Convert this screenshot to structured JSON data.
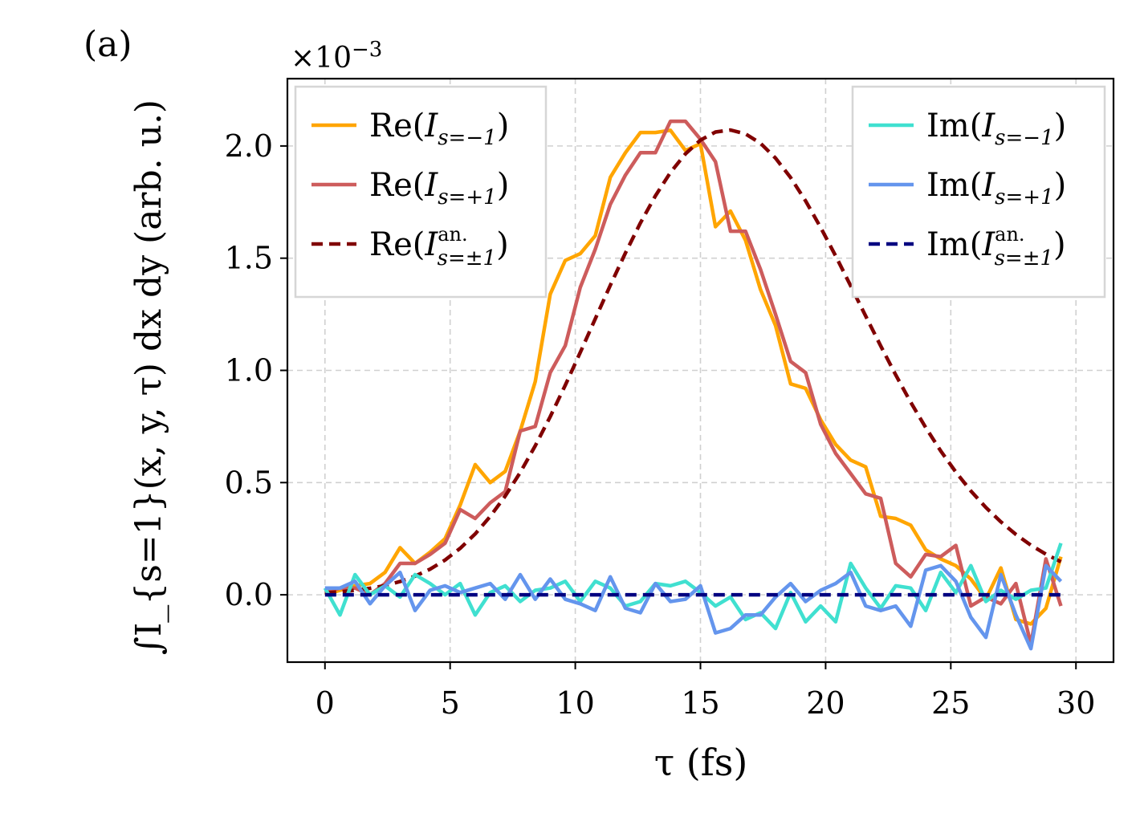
{
  "panel_label": "(a)",
  "scale_label": {
    "prefix": "×10",
    "exponent": "−3"
  },
  "x_axis": {
    "label": "τ (fs)",
    "ticks": [
      "0",
      "5",
      "10",
      "15",
      "20",
      "25",
      "30"
    ]
  },
  "y_axis": {
    "label": "∫I_{s=1}(x, y, τ) dx dy (arb. u.)",
    "ticks": [
      "0.0",
      "0.5",
      "1.0",
      "1.5",
      "2.0"
    ]
  },
  "chart_data": {
    "type": "line",
    "title": "",
    "xlabel": "τ (fs)",
    "ylabel": "∫I_{s=1}(x,y,τ) dx dy (arb. u.)",
    "scale": "×10^-3",
    "xlim": [
      -1.5,
      31.5
    ],
    "ylim": [
      -0.3,
      2.3
    ],
    "xticks": [
      0,
      5,
      10,
      15,
      20,
      25,
      30
    ],
    "yticks": [
      0.0,
      0.5,
      1.0,
      1.5,
      2.0
    ],
    "grid": true,
    "x": [
      0.0,
      0.6,
      1.2,
      1.8,
      2.4,
      3.0,
      3.6,
      4.2,
      4.8,
      5.4,
      6.0,
      6.6,
      7.2,
      7.8,
      8.4,
      9.0,
      9.6,
      10.2,
      10.8,
      11.4,
      12.0,
      12.6,
      13.2,
      13.8,
      14.4,
      15.0,
      15.6,
      16.2,
      16.8,
      17.4,
      18.0,
      18.6,
      19.2,
      19.8,
      20.4,
      21.0,
      21.6,
      22.2,
      22.8,
      23.4,
      24.0,
      24.6,
      25.2,
      25.8,
      26.4,
      27.0,
      27.6,
      28.2,
      28.8,
      29.4
    ],
    "series": [
      {
        "name": "Re(I_{s=−1})",
        "color": "#FFA500",
        "dash": "solid",
        "values": [
          0.0,
          0.02,
          0.04,
          0.05,
          0.1,
          0.21,
          0.14,
          0.19,
          0.25,
          0.4,
          0.58,
          0.5,
          0.55,
          0.73,
          0.95,
          1.34,
          1.49,
          1.52,
          1.6,
          1.86,
          1.97,
          2.06,
          2.06,
          2.07,
          1.98,
          2.01,
          1.64,
          1.71,
          1.58,
          1.36,
          1.2,
          0.94,
          0.92,
          0.78,
          0.67,
          0.6,
          0.57,
          0.35,
          0.34,
          0.31,
          0.2,
          0.16,
          0.13,
          0.07,
          -0.02,
          0.12,
          -0.11,
          -0.13,
          -0.06,
          0.17
        ]
      },
      {
        "name": "Re(I_{s=+1})",
        "color": "#CD5C5C",
        "dash": "solid",
        "values": [
          0.01,
          0.03,
          0.03,
          0.0,
          0.05,
          0.14,
          0.14,
          0.18,
          0.23,
          0.38,
          0.34,
          0.41,
          0.46,
          0.73,
          0.75,
          0.99,
          1.11,
          1.37,
          1.54,
          1.74,
          1.87,
          1.97,
          1.97,
          2.11,
          2.11,
          2.03,
          1.93,
          1.62,
          1.62,
          1.45,
          1.25,
          1.04,
          0.99,
          0.76,
          0.63,
          0.54,
          0.45,
          0.43,
          0.14,
          0.08,
          0.18,
          0.17,
          0.22,
          -0.05,
          -0.01,
          -0.04,
          0.05,
          -0.22,
          0.16,
          -0.05
        ]
      },
      {
        "name": "Re(I^{an.}_{s=±1})",
        "color": "#800000",
        "dash": "dashed",
        "values": [
          0.009,
          0.013,
          0.02,
          0.029,
          0.041,
          0.059,
          0.083,
          0.114,
          0.155,
          0.207,
          0.271,
          0.349,
          0.44,
          0.545,
          0.664,
          0.794,
          0.934,
          1.08,
          1.23,
          1.379,
          1.523,
          1.657,
          1.778,
          1.882,
          1.965,
          2.026,
          2.062,
          2.071,
          2.054,
          2.012,
          1.946,
          1.859,
          1.755,
          1.637,
          1.51,
          1.377,
          1.242,
          1.109,
          0.98,
          0.858,
          0.745,
          0.641,
          0.547,
          0.463,
          0.389,
          0.325,
          0.269,
          0.221,
          0.181,
          0.147
        ]
      },
      {
        "name": "Im(I_{s=−1})",
        "color": "#40E0D0",
        "dash": "solid",
        "values": [
          0.03,
          -0.09,
          0.09,
          0.0,
          0.04,
          -0.01,
          0.09,
          0.05,
          0.0,
          0.05,
          -0.09,
          0.01,
          0.04,
          -0.03,
          0.02,
          0.03,
          0.06,
          -0.03,
          0.06,
          0.03,
          -0.05,
          -0.03,
          0.05,
          0.04,
          0.06,
          0.01,
          -0.05,
          -0.01,
          -0.11,
          -0.08,
          -0.15,
          0.01,
          -0.12,
          -0.05,
          -0.12,
          0.14,
          0.03,
          -0.06,
          0.04,
          0.03,
          -0.07,
          0.1,
          0.01,
          0.13,
          -0.03,
          0.02,
          -0.02,
          0.02,
          0.03,
          0.23
        ]
      },
      {
        "name": "Im(I_{s=+1})",
        "color": "#6495ED",
        "dash": "solid",
        "values": [
          0.03,
          0.03,
          0.06,
          -0.04,
          0.04,
          0.1,
          -0.07,
          0.02,
          0.04,
          0.01,
          0.03,
          0.05,
          -0.02,
          0.09,
          -0.02,
          0.07,
          -0.02,
          -0.04,
          -0.07,
          0.08,
          -0.06,
          -0.08,
          0.05,
          -0.03,
          -0.02,
          0.04,
          -0.17,
          -0.15,
          -0.09,
          -0.09,
          -0.01,
          0.05,
          -0.03,
          0.02,
          0.05,
          0.1,
          -0.05,
          -0.07,
          -0.05,
          -0.14,
          0.11,
          0.13,
          0.06,
          -0.1,
          -0.19,
          0.09,
          -0.09,
          -0.24,
          0.13,
          0.06
        ]
      },
      {
        "name": "Im(I^{an.}_{s=±1})",
        "color": "#000080",
        "dash": "dashed",
        "values": [
          0,
          0,
          0,
          0,
          0,
          0,
          0,
          0,
          0,
          0,
          0,
          0,
          0,
          0,
          0,
          0,
          0,
          0,
          0,
          0,
          0,
          0,
          0,
          0,
          0,
          0,
          0,
          0,
          0,
          0,
          0,
          0,
          0,
          0,
          0,
          0,
          0,
          0,
          0,
          0,
          0,
          0,
          0,
          0,
          0,
          0,
          0,
          0,
          0,
          0
        ]
      }
    ],
    "legends": [
      {
        "placement": "upper-left",
        "entries": [
          {
            "series": 0,
            "main": "Re(",
            "var": "I",
            "sup": "",
            "sub": "s=−1",
            "close": ")"
          },
          {
            "series": 1,
            "main": "Re(",
            "var": "I",
            "sup": "",
            "sub": "s=+1",
            "close": ")"
          },
          {
            "series": 2,
            "main": "Re(",
            "var": "I",
            "sup": "an.",
            "sub": "s=±1",
            "close": ")"
          }
        ]
      },
      {
        "placement": "upper-right",
        "entries": [
          {
            "series": 3,
            "main": "Im(",
            "var": "I",
            "sup": "",
            "sub": "s=−1",
            "close": ")"
          },
          {
            "series": 4,
            "main": "Im(",
            "var": "I",
            "sup": "",
            "sub": "s=+1",
            "close": ")"
          },
          {
            "series": 5,
            "main": "Im(",
            "var": "I",
            "sup": "an.",
            "sub": "s=±1",
            "close": ")"
          }
        ]
      }
    ]
  }
}
